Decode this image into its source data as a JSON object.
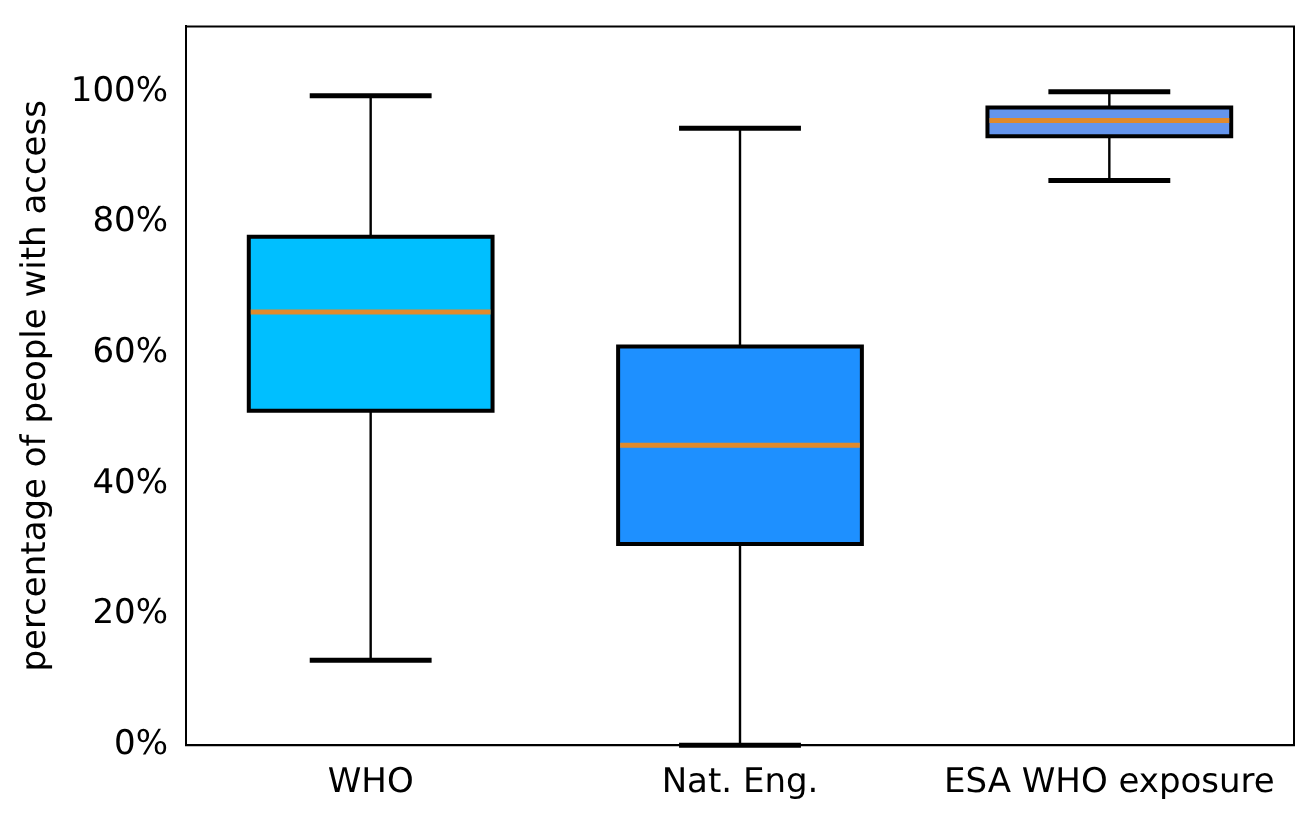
{
  "chart_data": {
    "type": "box",
    "ylabel": "percentage of people with access",
    "categories": [
      "WHO",
      "Nat. Eng.",
      "ESA WHO exposure"
    ],
    "boxes": [
      {
        "low": 13,
        "q1": 51.2,
        "median": 66.3,
        "q3": 77.8,
        "high": 99.4
      },
      {
        "low": 0,
        "q1": 30.8,
        "median": 45.9,
        "q3": 61,
        "high": 94.4
      },
      {
        "low": 86.4,
        "q1": 93.2,
        "median": 95.6,
        "q3": 97.6,
        "high": 100
      }
    ],
    "colors": [
      "#00bfff",
      "#1e90ff",
      "#6495ed"
    ],
    "ylim": [
      0,
      110
    ],
    "yticks": [
      {
        "value": 0,
        "label": "0%"
      },
      {
        "value": 20,
        "label": "20%"
      },
      {
        "value": 40,
        "label": "40%"
      },
      {
        "value": 60,
        "label": "60%"
      },
      {
        "value": 80,
        "label": "80%"
      },
      {
        "value": 100,
        "label": "100%"
      }
    ],
    "grid": false,
    "legend": false
  }
}
